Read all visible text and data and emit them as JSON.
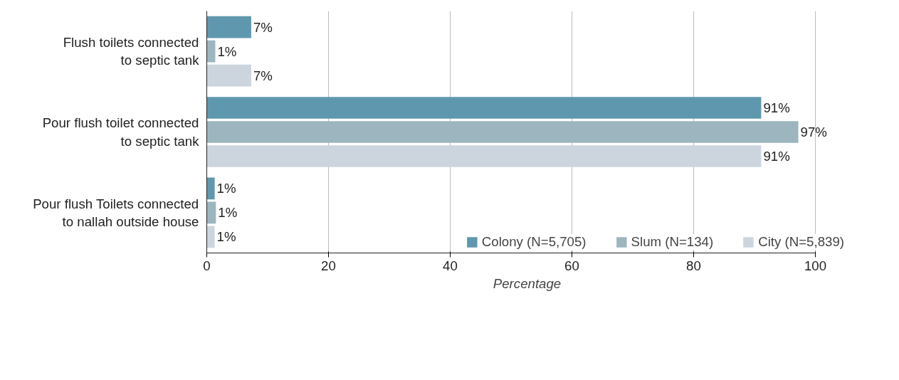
{
  "chart_data": {
    "type": "bar",
    "orientation": "horizontal",
    "xlabel": "Percentage",
    "categories": [
      "Flush toilets connected\nto septic tank",
      "Pour flush toilet connected\nto septic tank",
      "Pour flush Toilets connected\nto nallah outside house"
    ],
    "series": [
      {
        "name": "Colony (N=5,705)",
        "color": "#5f98ae",
        "values": [
          7.3,
          91.1,
          1.3
        ],
        "value_labels": [
          "7%",
          "91%",
          "1%"
        ]
      },
      {
        "name": "Slum (N=134)",
        "color": "#9db5bf",
        "values": [
          1.4,
          97.2,
          1.5
        ],
        "value_labels": [
          "1%",
          "97%",
          "1%"
        ]
      },
      {
        "name": "City (N=5,839)",
        "color": "#ccd5de",
        "values": [
          7.3,
          91.1,
          1.3
        ],
        "value_labels": [
          "7%",
          "91%",
          "1%"
        ]
      }
    ],
    "xlim": [
      0,
      100
    ],
    "xticks": [
      0,
      20,
      40,
      60,
      80,
      100
    ],
    "grid": "x",
    "legend": "bottom"
  }
}
